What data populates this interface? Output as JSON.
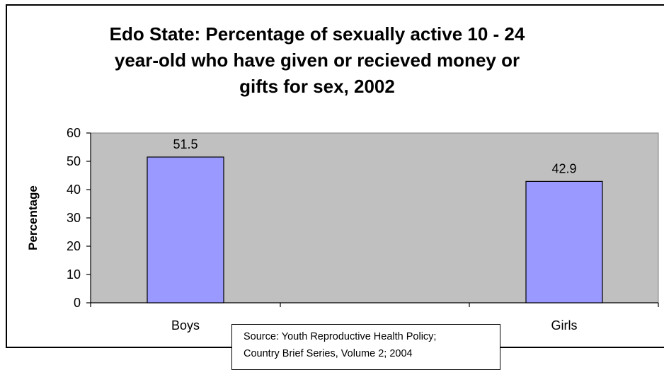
{
  "chart_data": {
    "type": "bar",
    "title": "Edo State: Percentage of sexually active 10 - 24\nyear-old who have given or recieved money or\ngifts for sex, 2002",
    "xlabel": "",
    "ylabel": "Percentage",
    "categories": [
      "Boys",
      "Girls"
    ],
    "values": [
      51.5,
      42.9
    ],
    "value_labels": [
      "51.5",
      "42.9"
    ],
    "ylim": [
      0,
      60
    ],
    "yticks": [
      0,
      10,
      20,
      30,
      40,
      50,
      60
    ],
    "grid": false,
    "legend": "none",
    "colors": {
      "bar_fill": "#9999ff",
      "plot_background": "#c0c0c0",
      "axis": "#000000"
    }
  },
  "source_note": {
    "line1": "Source: Youth Reproductive Health Policy;",
    "line2": "Country Brief Series, Volume 2; 2004"
  }
}
